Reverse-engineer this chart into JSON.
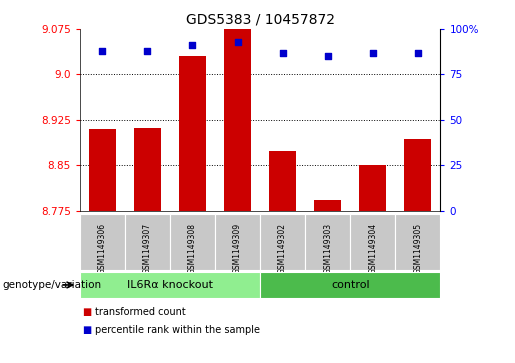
{
  "title": "GDS5383 / 10457872",
  "samples": [
    "GSM1149306",
    "GSM1149307",
    "GSM1149308",
    "GSM1149309",
    "GSM1149302",
    "GSM1149303",
    "GSM1149304",
    "GSM1149305"
  ],
  "red_values": [
    8.91,
    8.912,
    9.03,
    9.075,
    8.873,
    8.792,
    8.85,
    8.893
  ],
  "blue_values": [
    88,
    88,
    91,
    93,
    87,
    85,
    87,
    87
  ],
  "groups": [
    {
      "label": "IL6Rα knockout",
      "start": 0,
      "end": 4,
      "color": "#90EE90"
    },
    {
      "label": "control",
      "start": 4,
      "end": 8,
      "color": "#4CBB4C"
    }
  ],
  "ylim_left": [
    8.775,
    9.075
  ],
  "ylim_right": [
    0,
    100
  ],
  "yticks_left": [
    8.775,
    8.85,
    8.925,
    9.0,
    9.075
  ],
  "yticks_right": [
    0,
    25,
    50,
    75,
    100
  ],
  "bar_color": "#CC0000",
  "dot_color": "#0000CC",
  "label_row_color": "#C8C8C8",
  "legend_items": [
    {
      "label": "transformed count",
      "color": "#CC0000"
    },
    {
      "label": "percentile rank within the sample",
      "color": "#0000CC"
    }
  ],
  "genotype_label": "genotype/variation"
}
